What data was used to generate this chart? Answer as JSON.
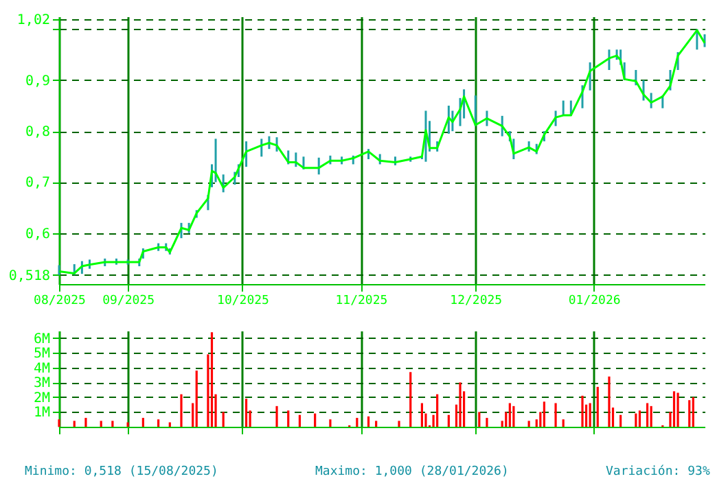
{
  "chart_data": [
    {
      "type": "line",
      "x": [
        "2025-08-14",
        "2025-08-18",
        "2025-08-20",
        "2025-08-22",
        "2025-08-26",
        "2025-08-29",
        "2025-09-01",
        "2025-09-04",
        "2025-09-05",
        "2025-09-09",
        "2025-09-11",
        "2025-09-12",
        "2025-09-15",
        "2025-09-17",
        "2025-09-19",
        "2025-09-22",
        "2025-09-23",
        "2025-09-24",
        "2025-09-26",
        "2025-09-29",
        "2025-09-30",
        "2025-10-02",
        "2025-10-06",
        "2025-10-08",
        "2025-10-10",
        "2025-10-13",
        "2025-10-15",
        "2025-10-17",
        "2025-10-21",
        "2025-10-24",
        "2025-10-27",
        "2025-10-30",
        "2025-11-03",
        "2025-11-06",
        "2025-11-10",
        "2025-11-14",
        "2025-11-17",
        "2025-11-18",
        "2025-11-19",
        "2025-11-21",
        "2025-11-24",
        "2025-11-25",
        "2025-11-27",
        "2025-11-28",
        "2025-12-01",
        "2025-12-04",
        "2025-12-08",
        "2025-12-10",
        "2025-12-11",
        "2025-12-15",
        "2025-12-17",
        "2025-12-19",
        "2025-12-22",
        "2025-12-24",
        "2025-12-26",
        "2025-12-29",
        "2025-12-31",
        "2026-01-05",
        "2026-01-07",
        "2026-01-08",
        "2026-01-09",
        "2026-01-12",
        "2026-01-14",
        "2026-01-16",
        "2026-01-19",
        "2026-01-21",
        "2026-01-23",
        "2026-01-28",
        "2026-01-30"
      ],
      "series": [
        {
          "color": "#00ff00",
          "values": [
            0.525,
            0.521,
            0.535,
            0.538,
            0.543,
            0.543,
            0.543,
            0.543,
            0.564,
            0.572,
            0.572,
            0.562,
            0.61,
            0.606,
            0.639,
            0.668,
            0.722,
            0.718,
            0.689,
            0.71,
            0.727,
            0.76,
            0.772,
            0.777,
            0.772,
            0.739,
            0.739,
            0.728,
            0.728,
            0.742,
            0.742,
            0.747,
            0.76,
            0.742,
            0.739,
            0.745,
            0.75,
            0.802,
            0.767,
            0.767,
            0.827,
            0.818,
            0.843,
            0.868,
            0.812,
            0.825,
            0.81,
            0.789,
            0.756,
            0.768,
            0.76,
            0.793,
            0.827,
            0.831,
            0.831,
            0.877,
            0.918,
            0.943,
            0.948,
            0.939,
            0.902,
            0.898,
            0.872,
            0.856,
            0.868,
            0.889,
            0.948,
            0.998,
            0.973
          ],
          "errors": [
            [
              0.518,
              0.537
            ],
            [
              0.518,
              0.539
            ],
            [
              0.52,
              0.545
            ],
            [
              0.53,
              0.548
            ],
            [
              0.535,
              0.55
            ],
            [
              0.538,
              0.55
            ],
            [
              0.538,
              0.548
            ],
            [
              0.535,
              0.55
            ],
            [
              0.55,
              0.57
            ],
            [
              0.565,
              0.58
            ],
            [
              0.565,
              0.58
            ],
            [
              0.558,
              0.57
            ],
            [
              0.59,
              0.62
            ],
            [
              0.6,
              0.62
            ],
            [
              0.63,
              0.645
            ],
            [
              0.645,
              0.675
            ],
            [
              0.69,
              0.735
            ],
            [
              0.7,
              0.785
            ],
            [
              0.68,
              0.715
            ],
            [
              0.695,
              0.72
            ],
            [
              0.71,
              0.735
            ],
            [
              0.73,
              0.78
            ],
            [
              0.75,
              0.785
            ],
            [
              0.765,
              0.79
            ],
            [
              0.76,
              0.788
            ],
            [
              0.735,
              0.762
            ],
            [
              0.73,
              0.758
            ],
            [
              0.725,
              0.75
            ],
            [
              0.715,
              0.748
            ],
            [
              0.735,
              0.752
            ],
            [
              0.735,
              0.75
            ],
            [
              0.735,
              0.752
            ],
            [
              0.745,
              0.765
            ],
            [
              0.735,
              0.755
            ],
            [
              0.733,
              0.75
            ],
            [
              0.74,
              0.75
            ],
            [
              0.745,
              0.752
            ],
            [
              0.74,
              0.84
            ],
            [
              0.76,
              0.82
            ],
            [
              0.76,
              0.78
            ],
            [
              0.795,
              0.85
            ],
            [
              0.8,
              0.84
            ],
            [
              0.81,
              0.865
            ],
            [
              0.825,
              0.882
            ],
            [
              0.81,
              0.87
            ],
            [
              0.81,
              0.84
            ],
            [
              0.79,
              0.83
            ],
            [
              0.78,
              0.8
            ],
            [
              0.745,
              0.785
            ],
            [
              0.76,
              0.78
            ],
            [
              0.755,
              0.775
            ],
            [
              0.78,
              0.8
            ],
            [
              0.81,
              0.84
            ],
            [
              0.83,
              0.86
            ],
            [
              0.83,
              0.86
            ],
            [
              0.845,
              0.89
            ],
            [
              0.88,
              0.935
            ],
            [
              0.92,
              0.96
            ],
            [
              0.94,
              0.96
            ],
            [
              0.93,
              0.96
            ],
            [
              0.9,
              0.935
            ],
            [
              0.89,
              0.92
            ],
            [
              0.86,
              0.9
            ],
            [
              0.845,
              0.875
            ],
            [
              0.845,
              0.87
            ],
            [
              0.88,
              0.92
            ],
            [
              0.92,
              0.955
            ],
            [
              0.96,
              1.0
            ],
            [
              0.965,
              0.99
            ]
          ],
          "marker": "none"
        }
      ],
      "xlim": [
        "2025-08-14",
        "2026-01-30"
      ],
      "xticks": [
        {
          "value": "2025-08-14",
          "label": "08/2025"
        },
        {
          "value": "2025-09-01",
          "label": "09/2025"
        },
        {
          "value": "2025-10-01",
          "label": "10/2025"
        },
        {
          "value": "2025-11-01",
          "label": "11/2025"
        },
        {
          "value": "2025-12-01",
          "label": "12/2025"
        },
        {
          "value": "2026-01-01",
          "label": "01/2026"
        }
      ],
      "ylim": [
        0.5,
        1.025
      ],
      "yticks": [
        {
          "value": 0.518,
          "label": "0,518"
        },
        {
          "value": 0.6,
          "label": "0,6"
        },
        {
          "value": 0.7,
          "label": "0,7"
        },
        {
          "value": 0.8,
          "label": "0,8"
        },
        {
          "value": 0.9,
          "label": "0,9"
        },
        {
          "value": 1.0,
          "label": null
        },
        {
          "value": 1.02,
          "label": "1,02"
        }
      ],
      "grid": true,
      "legend": false,
      "line_style": "solid"
    },
    {
      "type": "bar",
      "x": [
        "2025-08-14",
        "2025-08-18",
        "2025-08-21",
        "2025-08-25",
        "2025-08-28",
        "2025-09-01",
        "2025-09-05",
        "2025-09-09",
        "2025-09-12",
        "2025-09-15",
        "2025-09-18",
        "2025-09-19",
        "2025-09-22",
        "2025-09-23",
        "2025-09-24",
        "2025-09-26",
        "2025-10-02",
        "2025-10-03",
        "2025-10-10",
        "2025-10-13",
        "2025-10-16",
        "2025-10-20",
        "2025-10-24",
        "2025-10-29",
        "2025-10-31",
        "2025-11-03",
        "2025-11-05",
        "2025-11-11",
        "2025-11-14",
        "2025-11-17",
        "2025-11-18",
        "2025-11-19",
        "2025-11-20",
        "2025-11-21",
        "2025-11-24",
        "2025-11-26",
        "2025-11-27",
        "2025-11-28",
        "2025-12-02",
        "2025-12-04",
        "2025-12-08",
        "2025-12-09",
        "2025-12-10",
        "2025-12-11",
        "2025-12-15",
        "2025-12-17",
        "2025-12-18",
        "2025-12-19",
        "2025-12-22",
        "2025-12-24",
        "2025-12-29",
        "2025-12-30",
        "2025-12-31",
        "2026-01-02",
        "2026-01-05",
        "2026-01-06",
        "2026-01-08",
        "2026-01-12",
        "2026-01-13",
        "2026-01-15",
        "2026-01-16",
        "2026-01-19",
        "2026-01-21",
        "2026-01-22",
        "2026-01-23",
        "2026-01-26",
        "2026-01-27"
      ],
      "series": [
        {
          "color": "#ff0000",
          "values": [
            0.5,
            0.4,
            0.6,
            0.4,
            0.4,
            0.3,
            0.6,
            0.5,
            0.3,
            2.2,
            1.6,
            3.8,
            4.9,
            6.4,
            2.2,
            1.0,
            1.9,
            1.1,
            1.4,
            1.1,
            0.8,
            0.9,
            0.5,
            0.1,
            0.6,
            0.7,
            0.4,
            0.4,
            3.7,
            1.6,
            0.9,
            0.1,
            0.8,
            2.2,
            0.8,
            1.5,
            3.0,
            2.4,
            1.0,
            0.6,
            0.4,
            1.0,
            1.6,
            1.4,
            0.4,
            0.5,
            1.0,
            1.7,
            1.6,
            0.5,
            2.1,
            1.5,
            1.6,
            2.7,
            3.4,
            1.3,
            0.8,
            0.9,
            1.1,
            1.6,
            1.4,
            0.1,
            1.0,
            2.4,
            2.3,
            1.8,
            2.0
          ]
        }
      ],
      "xlim": [
        "2025-08-14",
        "2026-01-30"
      ],
      "xticks": [
        {
          "value": "2025-08-14",
          "label": null
        },
        {
          "value": "2025-09-01",
          "label": null
        },
        {
          "value": "2025-10-01",
          "label": null
        },
        {
          "value": "2025-11-01",
          "label": null
        },
        {
          "value": "2025-12-01",
          "label": null
        },
        {
          "value": "2026-01-01",
          "label": null
        }
      ],
      "ylim": [
        0,
        6.5
      ],
      "yticks": [
        {
          "value": 1,
          "label": "1M"
        },
        {
          "value": 2,
          "label": "2M"
        },
        {
          "value": 3,
          "label": "3M"
        },
        {
          "value": 4,
          "label": "4M"
        },
        {
          "value": 5,
          "label": "5M"
        },
        {
          "value": 6,
          "label": "6M"
        }
      ],
      "tick_labels": "y",
      "grid": true,
      "legend": false,
      "annotations": [
        "Minimo: 0,518 (15/08/2025)",
        "Maximo: 1,000 (28/01/2026)",
        "Variación: 93%"
      ]
    }
  ]
}
